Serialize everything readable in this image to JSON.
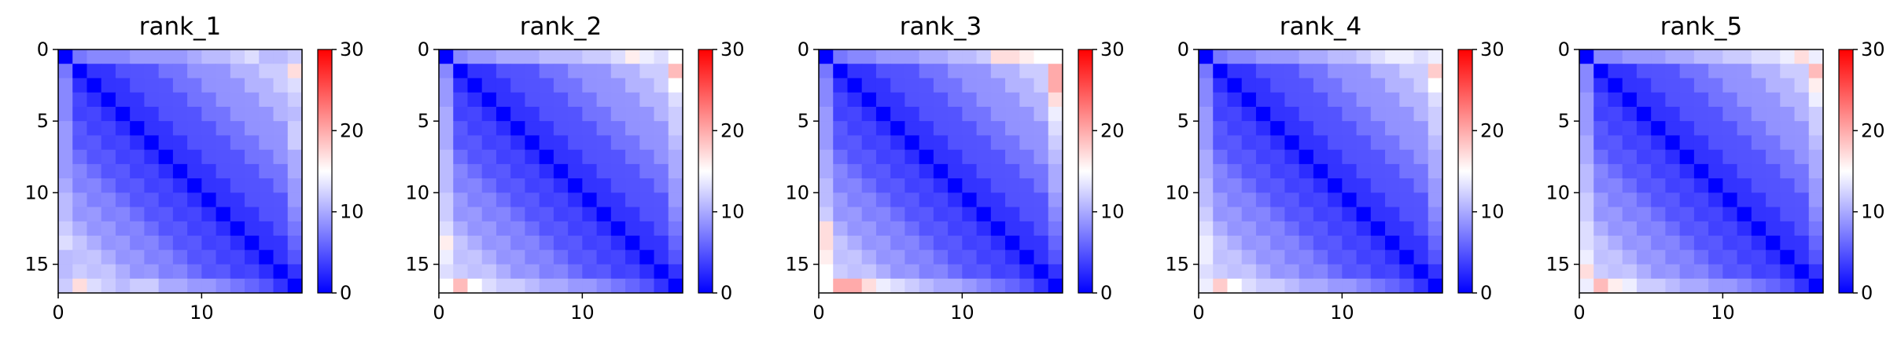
{
  "chart_data": [
    {
      "type": "heatmap",
      "title": "rank_1",
      "size": 17,
      "vmin": 0,
      "vmax": 30,
      "colormap": [
        "#0000ff",
        "#ffffff",
        "#ff0000"
      ],
      "xticks": [
        0,
        10
      ],
      "yticks": [
        0,
        5,
        10,
        15
      ],
      "colorbar_ticks": [
        0,
        10,
        20,
        30
      ],
      "edge_values": [
        6,
        7,
        8,
        8,
        8,
        9,
        9,
        9,
        9,
        10,
        11,
        11,
        12,
        13,
        11,
        11,
        12
      ],
      "last_row_values": [
        12,
        17,
        13,
        12,
        11,
        12,
        12,
        10,
        10,
        9,
        9,
        8,
        7,
        6,
        5,
        3,
        0
      ]
    },
    {
      "type": "heatmap",
      "title": "rank_2",
      "size": 17,
      "vmin": 0,
      "vmax": 30,
      "colormap": [
        "#0000ff",
        "#ffffff",
        "#ff0000"
      ],
      "xticks": [
        0,
        10
      ],
      "yticks": [
        0,
        5,
        10,
        15
      ],
      "colorbar_ticks": [
        0,
        10,
        20,
        30
      ],
      "edge_values": [
        7,
        8,
        9,
        9,
        10,
        10,
        10,
        11,
        11,
        11,
        12,
        12,
        13,
        16,
        14,
        13,
        14
      ],
      "last_row_values": [
        15,
        19,
        15,
        13,
        12,
        12,
        11,
        10,
        10,
        9,
        9,
        8,
        7,
        6,
        5,
        3,
        0
      ]
    },
    {
      "type": "heatmap",
      "title": "rank_3",
      "size": 17,
      "vmin": 0,
      "vmax": 30,
      "colormap": [
        "#0000ff",
        "#ffffff",
        "#ff0000"
      ],
      "xticks": [
        0,
        10
      ],
      "yticks": [
        0,
        5,
        10,
        15
      ],
      "colorbar_ticks": [
        0,
        10,
        20,
        30
      ],
      "edge_values": [
        6,
        7,
        8,
        8,
        9,
        9,
        9,
        10,
        10,
        11,
        11,
        12,
        17,
        17,
        16,
        15,
        14
      ],
      "last_row_values": [
        15,
        20,
        20,
        17,
        14,
        13,
        12,
        11,
        10,
        10,
        9,
        8,
        7,
        6,
        5,
        3,
        0
      ]
    },
    {
      "type": "heatmap",
      "title": "rank_4",
      "size": 17,
      "vmin": 0,
      "vmax": 30,
      "colormap": [
        "#0000ff",
        "#ffffff",
        "#ff0000"
      ],
      "xticks": [
        0,
        10
      ],
      "yticks": [
        0,
        5,
        10,
        15
      ],
      "colorbar_ticks": [
        0,
        10,
        20,
        30
      ],
      "edge_values": [
        6,
        7,
        8,
        8,
        9,
        9,
        9,
        10,
        10,
        11,
        11,
        12,
        13,
        14,
        14,
        13,
        13
      ],
      "last_row_values": [
        14,
        18,
        15,
        13,
        12,
        12,
        11,
        10,
        10,
        9,
        9,
        8,
        7,
        6,
        5,
        3,
        0
      ]
    },
    {
      "type": "heatmap",
      "title": "rank_5",
      "size": 17,
      "vmin": 0,
      "vmax": 30,
      "colormap": [
        "#0000ff",
        "#ffffff",
        "#ff0000"
      ],
      "xticks": [
        0,
        10
      ],
      "yticks": [
        0,
        5,
        10,
        15
      ],
      "colorbar_ticks": [
        0,
        10,
        20,
        30
      ],
      "edge_values": [
        7,
        8,
        8,
        9,
        9,
        9,
        10,
        10,
        11,
        11,
        12,
        12,
        13,
        13,
        14,
        17,
        19
      ],
      "last_row_values": [
        14,
        19,
        16,
        14,
        12,
        12,
        11,
        10,
        10,
        9,
        9,
        8,
        7,
        6,
        5,
        3,
        0
      ]
    }
  ]
}
